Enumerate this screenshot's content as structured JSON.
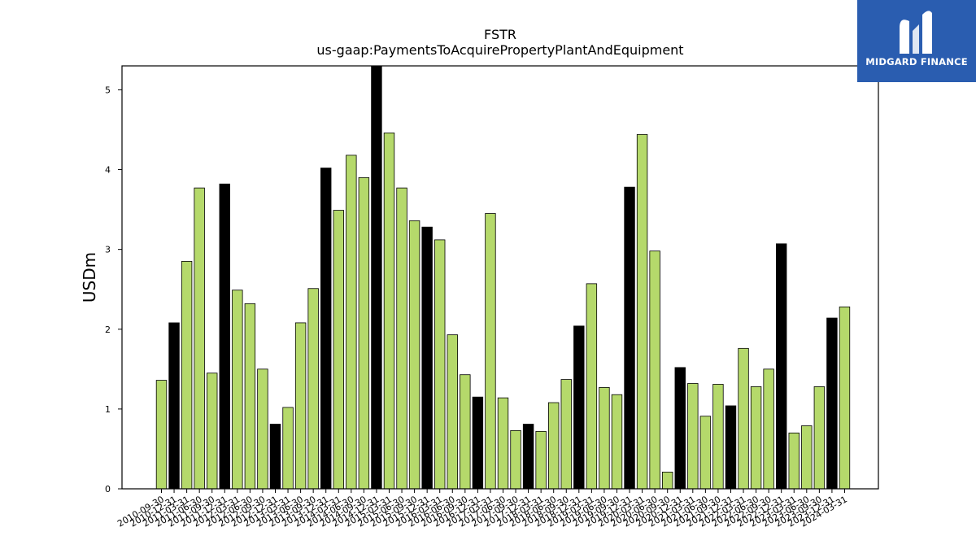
{
  "logo": {
    "text": "MIDGARD FINANCE"
  },
  "chart_data": {
    "type": "bar",
    "title": "FSTR",
    "subtitle": "us-gaap:PaymentsToAcquirePropertyPlantAndEquipment",
    "ylabel": "USDm",
    "xlabel": "",
    "ylim": [
      0,
      5.3
    ],
    "yticks": [
      0,
      1,
      2,
      3,
      4,
      5
    ],
    "grid": false,
    "colors": {
      "quarter": "#b5d96b",
      "year_end": "#000000",
      "edge": "#000000"
    },
    "categories": [
      "2010-09-30",
      "2010-12-31",
      "2011-03-31",
      "2011-06-30",
      "2011-09-30",
      "2011-12-31",
      "2012-03-31",
      "2012-06-30",
      "2012-09-30",
      "2012-12-31",
      "2013-03-31",
      "2013-06-30",
      "2013-09-30",
      "2013-12-31",
      "2014-03-31",
      "2014-06-30",
      "2014-09-30",
      "2014-12-31",
      "2015-03-31",
      "2015-06-30",
      "2015-09-30",
      "2015-12-31",
      "2016-03-31",
      "2016-06-30",
      "2016-09-30",
      "2016-12-31",
      "2017-03-31",
      "2017-06-30",
      "2017-09-30",
      "2017-12-31",
      "2018-03-31",
      "2018-06-30",
      "2018-09-30",
      "2018-12-31",
      "2019-03-31",
      "2019-06-30",
      "2019-09-30",
      "2019-12-31",
      "2020-03-31",
      "2020-06-30",
      "2020-09-30",
      "2020-12-31",
      "2021-03-31",
      "2021-06-30",
      "2021-09-30",
      "2021-12-31",
      "2022-03-31",
      "2022-06-30",
      "2022-09-30",
      "2022-12-31",
      "2023-03-31",
      "2023-06-30",
      "2023-09-30",
      "2023-12-31",
      "2024-03-31"
    ],
    "values": [
      1.36,
      2.08,
      2.85,
      3.77,
      1.45,
      3.82,
      2.49,
      2.32,
      1.5,
      0.81,
      1.02,
      2.08,
      2.51,
      4.02,
      3.49,
      4.18,
      3.9,
      5.32,
      4.46,
      3.77,
      3.36,
      3.28,
      3.12,
      1.93,
      1.43,
      1.15,
      3.45,
      1.14,
      0.73,
      0.81,
      0.72,
      1.08,
      1.37,
      2.04,
      2.57,
      1.27,
      1.18,
      3.78,
      4.44,
      2.98,
      0.21,
      1.52,
      1.32,
      0.91,
      1.31,
      1.04,
      1.76,
      1.28,
      1.5,
      3.07,
      0.7,
      0.79,
      1.28,
      2.14,
      2.28
    ],
    "year_end": [
      false,
      true,
      false,
      false,
      false,
      true,
      false,
      false,
      false,
      true,
      false,
      false,
      false,
      true,
      false,
      false,
      false,
      true,
      false,
      false,
      false,
      true,
      false,
      false,
      false,
      true,
      false,
      false,
      false,
      true,
      false,
      false,
      false,
      true,
      false,
      false,
      false,
      true,
      false,
      false,
      false,
      true,
      false,
      false,
      false,
      true,
      false,
      false,
      false,
      true,
      false,
      false,
      false,
      true,
      false
    ]
  }
}
